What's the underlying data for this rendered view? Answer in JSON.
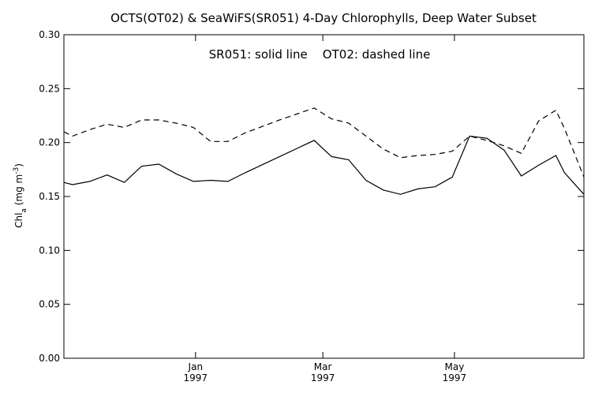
{
  "chart_data": {
    "type": "line",
    "title": "OCTS(OT02) & SeaWiFS(SR051) 4-Day Chlorophylls, Deep Water Subset",
    "annotation": "SR051: solid line    OT02: dashed line",
    "ylabel": {
      "base": "Chl",
      "sub": "a",
      "units_open": " (mg m",
      "sup": "-3",
      "units_close": ")"
    },
    "ylim": [
      0.0,
      0.3
    ],
    "y_ticks": [
      "0.00",
      "0.05",
      "0.10",
      "0.15",
      "0.20",
      "0.25",
      "0.30"
    ],
    "x_range": [
      "1996-11-01",
      "1997-06-30"
    ],
    "x_ticks": [
      {
        "date": "1997-01-01",
        "month": "Jan",
        "year": "1997"
      },
      {
        "date": "1997-03-01",
        "month": "Mar",
        "year": "1997"
      },
      {
        "date": "1997-05-01",
        "month": "May",
        "year": "1997"
      }
    ],
    "grid": false,
    "series": [
      {
        "name": "SR051",
        "style": "solid",
        "x": [
          "1996-11-01",
          "1996-11-05",
          "1996-11-13",
          "1996-11-21",
          "1996-11-29",
          "1996-12-07",
          "1996-12-15",
          "1996-12-23",
          "1996-12-31",
          "1997-01-08",
          "1997-01-16",
          "1997-01-24",
          "1997-02-09",
          "1997-02-25",
          "1997-03-05",
          "1997-03-13",
          "1997-03-21",
          "1997-03-29",
          "1997-04-06",
          "1997-04-14",
          "1997-04-22",
          "1997-04-30",
          "1997-05-08",
          "1997-05-16",
          "1997-05-24",
          "1997-06-01",
          "1997-06-09",
          "1997-06-17",
          "1997-06-21",
          "1997-06-30"
        ],
        "values": [
          0.163,
          0.161,
          0.164,
          0.17,
          0.163,
          0.178,
          0.18,
          0.171,
          0.164,
          0.165,
          0.164,
          0.172,
          0.187,
          0.202,
          0.187,
          0.184,
          0.165,
          0.156,
          0.152,
          0.157,
          0.159,
          0.168,
          0.206,
          0.204,
          0.193,
          0.169,
          0.179,
          0.188,
          0.172,
          0.152
        ]
      },
      {
        "name": "OT02",
        "style": "dashed",
        "x": [
          "1996-11-01",
          "1996-11-05",
          "1996-11-13",
          "1996-11-21",
          "1996-11-29",
          "1996-12-07",
          "1996-12-15",
          "1996-12-23",
          "1996-12-31",
          "1997-01-08",
          "1997-01-16",
          "1997-01-24",
          "1997-02-09",
          "1997-02-25",
          "1997-03-05",
          "1997-03-13",
          "1997-03-21",
          "1997-03-29",
          "1997-04-06",
          "1997-04-14",
          "1997-04-22",
          "1997-04-30",
          "1997-05-08",
          "1997-05-16",
          "1997-05-24",
          "1997-06-01",
          "1997-06-09",
          "1997-06-17",
          "1997-06-21",
          "1997-06-30"
        ],
        "values": [
          0.21,
          0.206,
          0.212,
          0.217,
          0.214,
          0.221,
          0.221,
          0.218,
          0.214,
          0.201,
          0.201,
          0.209,
          0.221,
          0.232,
          0.222,
          0.218,
          0.206,
          0.194,
          0.186,
          0.188,
          0.189,
          0.192,
          0.206,
          0.202,
          0.197,
          0.19,
          0.22,
          0.23,
          0.213,
          0.168
        ]
      }
    ]
  }
}
